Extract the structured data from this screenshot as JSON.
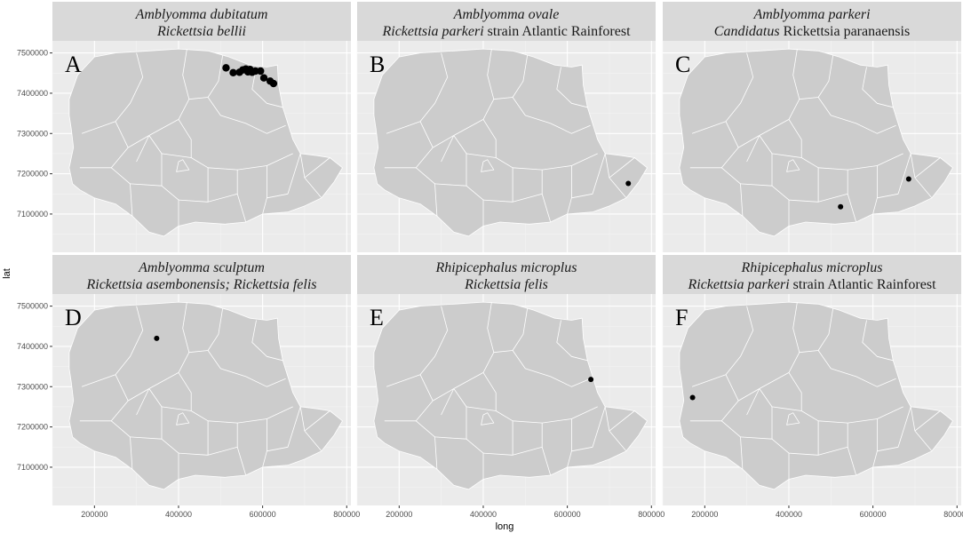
{
  "axes": {
    "xlabel": "long",
    "ylabel": "lat",
    "xlim": [
      100000,
      810000
    ],
    "ylim": [
      7005000,
      7530000
    ],
    "x_ticks": [
      200000,
      400000,
      600000,
      800000
    ],
    "y_ticks": [
      7100000,
      7200000,
      7300000,
      7400000,
      7500000
    ],
    "x_tick_labels": [
      "200000",
      "400000",
      "600000",
      "800000"
    ],
    "y_tick_labels": [
      "7100000",
      "7200000",
      "7300000",
      "7400000",
      "7500000"
    ]
  },
  "style": {
    "panel_background": "#ebebeb",
    "strip_background": "#d9d9d9",
    "grid_major": "#ffffff",
    "grid_minor": "#f3f3f3",
    "map_fill": "#cccccc",
    "boundary_color": "#ffffff",
    "point_color": "#000000"
  },
  "map": {
    "region_outline": [
      [
        140000,
        7385000
      ],
      [
        160000,
        7445000
      ],
      [
        200000,
        7490000
      ],
      [
        250000,
        7500000
      ],
      [
        330000,
        7505000
      ],
      [
        400000,
        7510000
      ],
      [
        470000,
        7505000
      ],
      [
        520000,
        7490000
      ],
      [
        570000,
        7470000
      ],
      [
        610000,
        7465000
      ],
      [
        635000,
        7470000
      ],
      [
        638000,
        7420000
      ],
      [
        648000,
        7365000
      ],
      [
        660000,
        7325000
      ],
      [
        672000,
        7285000
      ],
      [
        690000,
        7250000
      ],
      [
        730000,
        7245000
      ],
      [
        760000,
        7240000
      ],
      [
        790000,
        7215000
      ],
      [
        770000,
        7180000
      ],
      [
        740000,
        7140000
      ],
      [
        700000,
        7120000
      ],
      [
        660000,
        7105000
      ],
      [
        600000,
        7100000
      ],
      [
        560000,
        7080000
      ],
      [
        510000,
        7075000
      ],
      [
        440000,
        7080000
      ],
      [
        400000,
        7070000
      ],
      [
        365000,
        7045000
      ],
      [
        330000,
        7055000
      ],
      [
        290000,
        7095000
      ],
      [
        250000,
        7125000
      ],
      [
        200000,
        7140000
      ],
      [
        165000,
        7160000
      ],
      [
        148000,
        7175000
      ],
      [
        140000,
        7215000
      ],
      [
        150000,
        7265000
      ],
      [
        145000,
        7310000
      ],
      [
        140000,
        7345000
      ]
    ],
    "internal_boundaries": [
      [
        [
          300000,
          7500000
        ],
        [
          315000,
          7440000
        ],
        [
          285000,
          7375000
        ],
        [
          250000,
          7330000
        ],
        [
          170000,
          7300000
        ]
      ],
      [
        [
          420000,
          7510000
        ],
        [
          410000,
          7445000
        ],
        [
          425000,
          7385000
        ],
        [
          400000,
          7335000
        ],
        [
          330000,
          7295000
        ]
      ],
      [
        [
          505000,
          7495000
        ],
        [
          495000,
          7430000
        ],
        [
          470000,
          7390000
        ]
      ],
      [
        [
          470000,
          7390000
        ],
        [
          500000,
          7345000
        ],
        [
          560000,
          7325000
        ],
        [
          610000,
          7300000
        ],
        [
          655000,
          7320000
        ]
      ],
      [
        [
          425000,
          7385000
        ],
        [
          470000,
          7390000
        ]
      ],
      [
        [
          585000,
          7465000
        ],
        [
          575000,
          7410000
        ],
        [
          610000,
          7375000
        ],
        [
          648000,
          7365000
        ]
      ],
      [
        [
          330000,
          7295000
        ],
        [
          360000,
          7250000
        ],
        [
          430000,
          7240000
        ],
        [
          470000,
          7215000
        ],
        [
          540000,
          7210000
        ],
        [
          610000,
          7220000
        ],
        [
          672000,
          7250000
        ]
      ],
      [
        [
          400000,
          7335000
        ],
        [
          430000,
          7285000
        ],
        [
          430000,
          7240000
        ]
      ],
      [
        [
          250000,
          7330000
        ],
        [
          280000,
          7265000
        ],
        [
          330000,
          7295000
        ]
      ],
      [
        [
          280000,
          7265000
        ],
        [
          240000,
          7215000
        ],
        [
          165000,
          7215000
        ]
      ],
      [
        [
          240000,
          7215000
        ],
        [
          285000,
          7175000
        ],
        [
          290000,
          7095000
        ]
      ],
      [
        [
          285000,
          7175000
        ],
        [
          360000,
          7170000
        ],
        [
          400000,
          7135000
        ],
        [
          400000,
          7070000
        ]
      ],
      [
        [
          360000,
          7250000
        ],
        [
          360000,
          7170000
        ]
      ],
      [
        [
          400000,
          7135000
        ],
        [
          470000,
          7130000
        ],
        [
          470000,
          7215000
        ]
      ],
      [
        [
          470000,
          7130000
        ],
        [
          540000,
          7150000
        ],
        [
          560000,
          7080000
        ]
      ],
      [
        [
          540000,
          7150000
        ],
        [
          540000,
          7210000
        ]
      ],
      [
        [
          610000,
          7220000
        ],
        [
          610000,
          7140000
        ],
        [
          600000,
          7100000
        ]
      ],
      [
        [
          610000,
          7140000
        ],
        [
          660000,
          7150000
        ],
        [
          690000,
          7250000
        ]
      ],
      [
        [
          690000,
          7250000
        ],
        [
          700000,
          7190000
        ],
        [
          740000,
          7140000
        ]
      ],
      [
        [
          700000,
          7190000
        ],
        [
          760000,
          7240000
        ]
      ],
      [
        [
          330000,
          7295000
        ],
        [
          300000,
          7230000
        ]
      ],
      [
        [
          400000,
          7230000
        ],
        [
          395000,
          7205000
        ],
        [
          425000,
          7210000
        ],
        [
          410000,
          7235000
        ],
        [
          400000,
          7230000
        ]
      ]
    ]
  },
  "panels": [
    {
      "letter": "A",
      "title_line1": "Amblyomma dubitatum",
      "title_line2": "Rickettsia bellii",
      "points": [
        [
          513000,
          7463000
        ],
        [
          530000,
          7451000
        ],
        [
          545000,
          7452000
        ],
        [
          553000,
          7458000
        ],
        [
          560000,
          7460000
        ],
        [
          565000,
          7453000
        ],
        [
          570000,
          7459000
        ],
        [
          575000,
          7452000
        ],
        [
          583000,
          7455000
        ],
        [
          595000,
          7455000
        ],
        [
          603000,
          7438000
        ],
        [
          618000,
          7430000
        ],
        [
          626000,
          7424000
        ]
      ]
    },
    {
      "letter": "B",
      "title_line1": "Amblyomma ovale",
      "title_line2_italic": "Rickettsia parkeri",
      "title_line2_plain": " strain Atlantic Rainforest",
      "points": [
        [
          745000,
          7176000
        ]
      ]
    },
    {
      "letter": "C",
      "title_line1": "Amblyomma parkeri",
      "title_line2_italic": "Candidatus",
      "title_line2_plain": " Rickettsia paranaensis",
      "points": [
        [
          523000,
          7118000
        ],
        [
          685000,
          7187000
        ]
      ]
    },
    {
      "letter": "D",
      "title_line1": "Amblyomma sculptum",
      "title_line2": "Rickettsia asembonensis; Rickettsia felis",
      "points": [
        [
          348000,
          7420000
        ]
      ]
    },
    {
      "letter": "E",
      "title_line1": "Rhipicephalus microplus",
      "title_line2": "Rickettsia felis",
      "points": [
        [
          656000,
          7318000
        ]
      ]
    },
    {
      "letter": "F",
      "title_line1": "Rhipicephalus microplus",
      "title_line2_italic": "Rickettsia parkeri",
      "title_line2_plain": " strain Atlantic Rainforest",
      "points": [
        [
          171000,
          7273000
        ]
      ]
    }
  ]
}
